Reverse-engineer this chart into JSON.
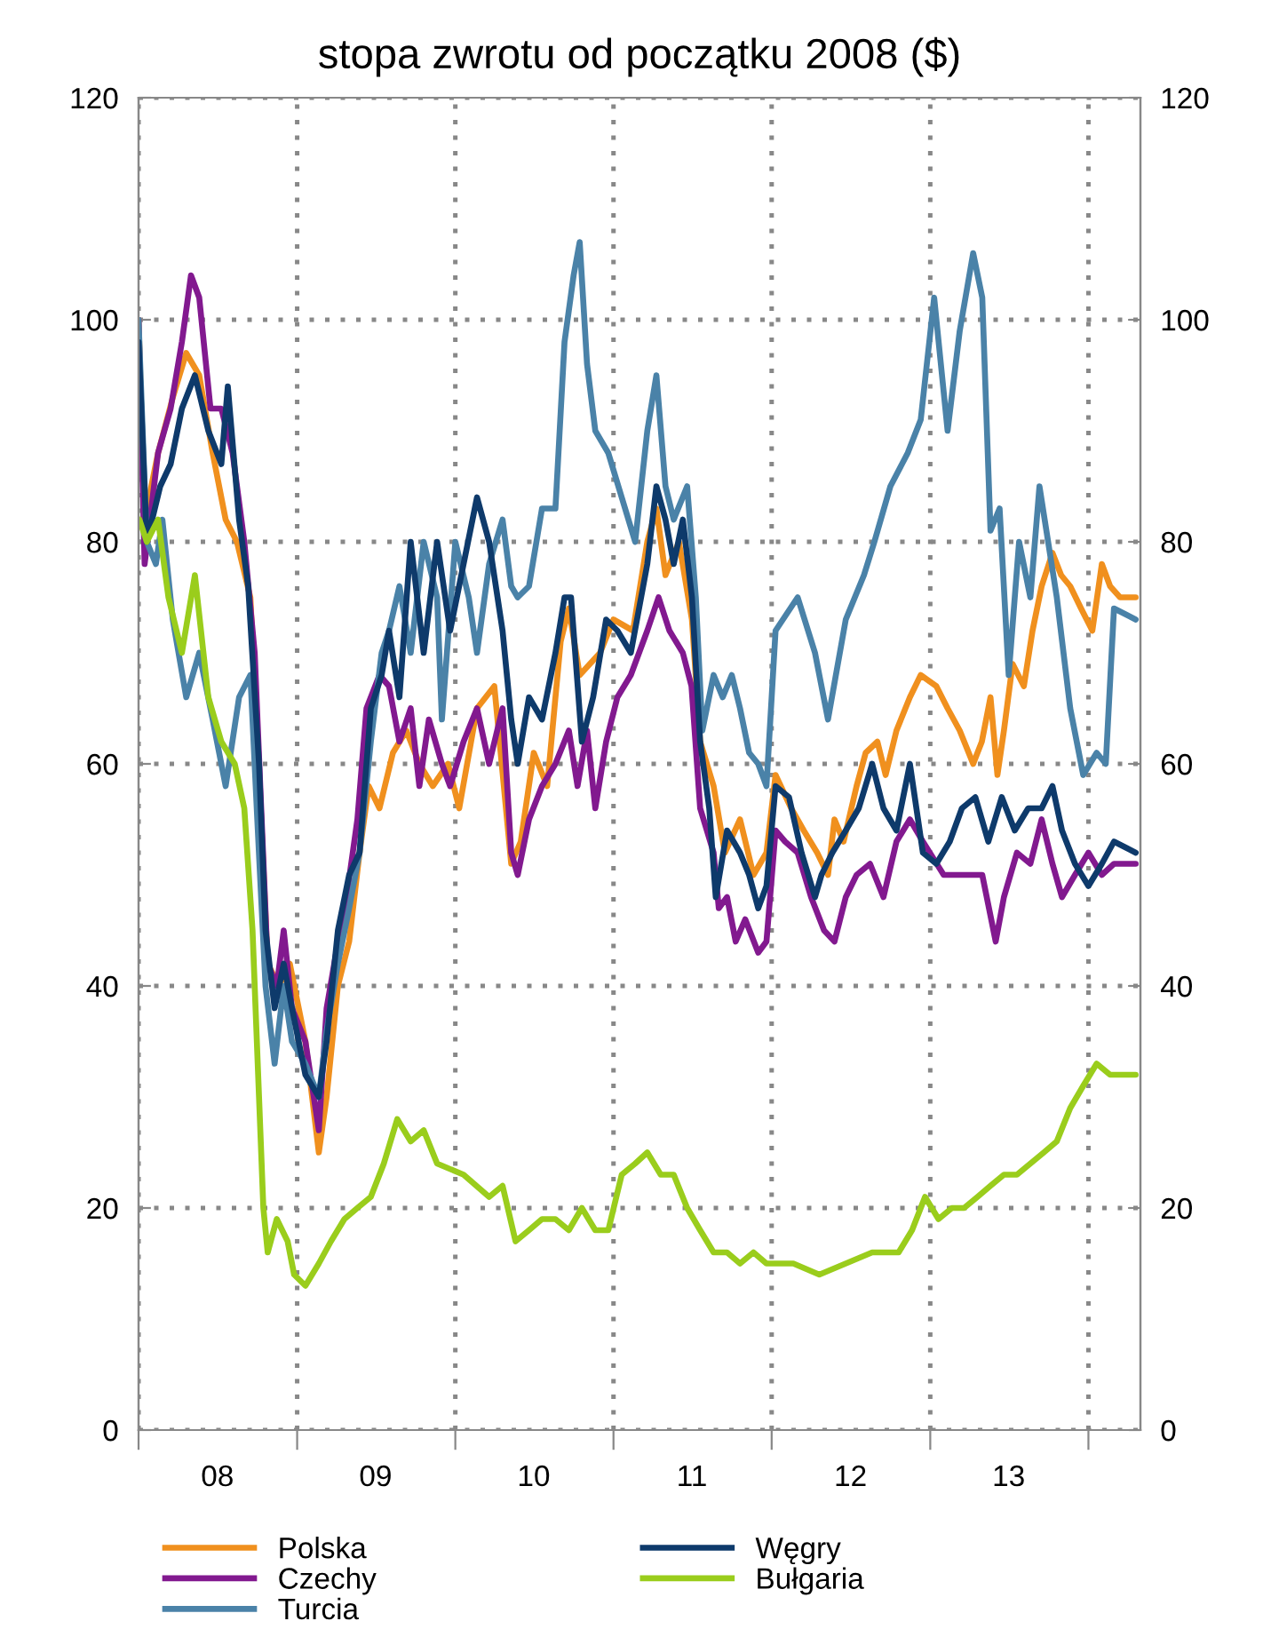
{
  "chart_data": {
    "type": "line",
    "title": "stopa zwrotu od początku 2008 ($)",
    "xlim": [
      "2008-01-01",
      "2014-05-01"
    ],
    "xticks": [
      {
        "value": "2008-01-01",
        "label": null
      },
      {
        "value": "2008-07-01",
        "label": "08"
      },
      {
        "value": "2009-01-01",
        "label": null
      },
      {
        "value": "2009-07-01",
        "label": "09"
      },
      {
        "value": "2010-01-01",
        "label": null
      },
      {
        "value": "2010-07-01",
        "label": "10"
      },
      {
        "value": "2011-01-01",
        "label": null
      },
      {
        "value": "2011-07-01",
        "label": "11"
      },
      {
        "value": "2012-01-01",
        "label": null
      },
      {
        "value": "2012-07-01",
        "label": "12"
      },
      {
        "value": "2013-01-01",
        "label": null
      },
      {
        "value": "2013-07-01",
        "label": "13"
      },
      {
        "value": "2014-01-01",
        "label": null
      }
    ],
    "ylim": [
      0,
      120
    ],
    "yticks": [
      0,
      20,
      40,
      60,
      80,
      100,
      120
    ],
    "y2lim": [
      0,
      120
    ],
    "y2ticks": [
      0,
      20,
      40,
      60,
      80,
      100,
      120
    ],
    "grid": true,
    "legend": "bottom",
    "line_style": "solid",
    "series": [
      {
        "name": "Polska",
        "color": "#f0901e",
        "x": [
          "2008-01-01",
          "2008-01-15",
          "2008-02-15",
          "2008-03-20",
          "2008-04-20",
          "2008-05-20",
          "2008-06-20",
          "2008-07-20",
          "2008-08-15",
          "2008-09-15",
          "2008-10-10",
          "2008-10-25",
          "2008-11-20",
          "2008-12-15",
          "2009-01-20",
          "2009-02-20",
          "2009-03-10",
          "2009-04-05",
          "2009-05-01",
          "2009-05-25",
          "2009-06-15",
          "2009-07-10",
          "2009-08-10",
          "2009-09-10",
          "2009-10-10",
          "2009-11-10",
          "2009-12-15",
          "2010-01-10",
          "2010-02-20",
          "2010-04-01",
          "2010-05-10",
          "2010-06-01",
          "2010-07-01",
          "2010-08-01",
          "2010-09-01",
          "2010-09-20",
          "2010-10-15",
          "2010-12-01",
          "2011-01-01",
          "2011-02-15",
          "2011-03-20",
          "2011-04-10",
          "2011-05-01",
          "2011-06-01",
          "2011-07-01",
          "2011-07-20",
          "2011-08-20",
          "2011-09-15",
          "2011-10-20",
          "2011-11-20",
          "2011-12-20",
          "2012-01-10",
          "2012-02-15",
          "2012-03-15",
          "2012-04-15",
          "2012-05-10",
          "2012-05-25",
          "2012-06-15",
          "2012-07-15",
          "2012-08-05",
          "2012-09-01",
          "2012-09-20",
          "2012-10-15",
          "2012-11-15",
          "2012-12-10",
          "2013-01-15",
          "2013-02-10",
          "2013-03-10",
          "2013-04-10",
          "2013-04-30",
          "2013-05-20",
          "2013-06-05",
          "2013-06-20",
          "2013-07-10",
          "2013-08-05",
          "2013-08-25",
          "2013-09-15",
          "2013-10-10",
          "2013-10-30",
          "2013-11-20",
          "2013-12-15",
          "2014-01-10",
          "2014-02-01",
          "2014-02-20",
          "2014-03-15",
          "2014-04-20"
        ],
        "values": [
          100,
          82,
          88,
          93,
          97,
          95,
          88,
          82,
          80,
          75,
          55,
          42,
          40,
          42,
          35,
          25,
          30,
          40,
          44,
          52,
          58,
          56,
          61,
          63,
          60,
          58,
          60,
          56,
          65,
          67,
          51,
          53,
          61,
          58,
          71,
          74,
          68,
          70,
          73,
          72,
          80,
          83,
          77,
          80,
          73,
          62,
          58,
          52,
          55,
          50,
          52,
          59,
          56,
          54,
          52,
          50,
          55,
          53,
          58,
          61,
          62,
          59,
          63,
          66,
          68,
          67,
          65,
          63,
          60,
          62,
          66,
          59,
          63,
          69,
          67,
          72,
          76,
          79,
          77,
          76,
          74,
          72,
          78,
          76,
          75,
          75
        ]
      },
      {
        "name": "Czechy",
        "color": "#82198f",
        "x": [
          "2008-01-01",
          "2008-01-15",
          "2008-02-15",
          "2008-03-15",
          "2008-04-10",
          "2008-05-01",
          "2008-05-20",
          "2008-06-15",
          "2008-07-10",
          "2008-08-05",
          "2008-09-01",
          "2008-09-25",
          "2008-10-10",
          "2008-10-25",
          "2008-11-15",
          "2008-12-01",
          "2008-12-20",
          "2009-01-20",
          "2009-02-20",
          "2009-03-10",
          "2009-04-01",
          "2009-04-25",
          "2009-05-20",
          "2009-06-10",
          "2009-07-10",
          "2009-08-01",
          "2009-08-25",
          "2009-09-20",
          "2009-10-10",
          "2009-11-01",
          "2009-12-01",
          "2009-12-20",
          "2010-01-20",
          "2010-02-20",
          "2010-03-20",
          "2010-04-20",
          "2010-05-10",
          "2010-05-25",
          "2010-06-20",
          "2010-07-20",
          "2010-08-20",
          "2010-09-20",
          "2010-10-10",
          "2010-11-01",
          "2010-11-20",
          "2010-12-15",
          "2011-01-10",
          "2011-02-10",
          "2011-03-20",
          "2011-04-15",
          "2011-05-10",
          "2011-06-10",
          "2011-06-30",
          "2011-07-20",
          "2011-08-20",
          "2011-09-01",
          "2011-09-20",
          "2011-10-10",
          "2011-11-01",
          "2011-12-01",
          "2011-12-20",
          "2012-01-10",
          "2012-02-01",
          "2012-03-01",
          "2012-04-01",
          "2012-05-01",
          "2012-05-25",
          "2012-06-20",
          "2012-07-15",
          "2012-08-15",
          "2012-09-15",
          "2012-10-15",
          "2012-11-15",
          "2012-12-15",
          "2013-02-01",
          "2013-03-01",
          "2013-04-01",
          "2013-05-01",
          "2013-06-01",
          "2013-06-20",
          "2013-07-20",
          "2013-08-20",
          "2013-09-15",
          "2013-10-10",
          "2013-11-01",
          "2013-12-01",
          "2014-01-01",
          "2014-02-01",
          "2014-03-01",
          "2014-04-20"
        ],
        "values": [
          100,
          78,
          88,
          92,
          98,
          104,
          102,
          92,
          92,
          88,
          80,
          70,
          56,
          42,
          40,
          45,
          38,
          35,
          27,
          38,
          43,
          48,
          55,
          65,
          68,
          67,
          62,
          65,
          58,
          64,
          60,
          58,
          62,
          65,
          60,
          65,
          52,
          50,
          55,
          58,
          60,
          63,
          58,
          63,
          56,
          62,
          66,
          68,
          72,
          75,
          72,
          70,
          67,
          56,
          52,
          47,
          48,
          44,
          46,
          43,
          44,
          54,
          53,
          52,
          48,
          45,
          44,
          48,
          50,
          51,
          48,
          53,
          55,
          53,
          50,
          50,
          50,
          50,
          44,
          48,
          52,
          51,
          55,
          51,
          48,
          50,
          52,
          50,
          51,
          51
        ]
      },
      {
        "name": "Turcia",
        "color": "#4a82a8",
        "x": [
          "2008-01-01",
          "2008-01-20",
          "2008-02-10",
          "2008-02-25",
          "2008-03-20",
          "2008-04-20",
          "2008-05-20",
          "2008-06-20",
          "2008-07-20",
          "2008-08-20",
          "2008-09-15",
          "2008-10-01",
          "2008-10-20",
          "2008-11-10",
          "2008-12-01",
          "2008-12-20",
          "2009-01-20",
          "2009-02-20",
          "2009-03-10",
          "2009-04-05",
          "2009-05-01",
          "2009-05-25",
          "2009-06-20",
          "2009-07-15",
          "2009-08-01",
          "2009-08-25",
          "2009-09-20",
          "2009-10-20",
          "2009-11-20",
          "2009-12-01",
          "2010-01-01",
          "2010-02-01",
          "2010-02-20",
          "2010-03-20",
          "2010-04-20",
          "2010-05-10",
          "2010-05-25",
          "2010-06-20",
          "2010-07-20",
          "2010-08-20",
          "2010-09-10",
          "2010-10-01",
          "2010-10-15",
          "2010-11-01",
          "2010-11-20",
          "2010-12-20",
          "2011-01-20",
          "2011-02-20",
          "2011-03-20",
          "2011-04-10",
          "2011-05-01",
          "2011-05-20",
          "2011-06-20",
          "2011-07-10",
          "2011-07-25",
          "2011-08-20",
          "2011-09-10",
          "2011-10-01",
          "2011-10-20",
          "2011-11-10",
          "2011-12-01",
          "2011-12-20",
          "2012-01-10",
          "2012-03-01",
          "2012-04-10",
          "2012-05-10",
          "2012-06-20",
          "2012-08-01",
          "2012-08-25",
          "2012-10-01",
          "2012-11-10",
          "2012-12-10",
          "2013-01-10",
          "2013-02-10",
          "2013-03-10",
          "2013-04-10",
          "2013-05-01",
          "2013-05-20",
          "2013-06-10",
          "2013-07-01",
          "2013-07-25",
          "2013-08-20",
          "2013-09-10",
          "2013-10-20",
          "2013-11-20",
          "2013-12-20",
          "2014-01-20",
          "2014-02-10",
          "2014-03-01",
          "2014-04-20"
        ],
        "values": [
          100,
          80,
          78,
          82,
          73,
          66,
          70,
          64,
          58,
          66,
          68,
          55,
          40,
          33,
          40,
          35,
          33,
          30,
          36,
          42,
          47,
          52,
          62,
          70,
          72,
          76,
          70,
          80,
          75,
          64,
          80,
          75,
          70,
          78,
          82,
          76,
          75,
          76,
          83,
          83,
          98,
          104,
          107,
          96,
          90,
          88,
          84,
          80,
          90,
          95,
          85,
          82,
          85,
          75,
          63,
          68,
          66,
          68,
          65,
          61,
          60,
          58,
          72,
          75,
          70,
          64,
          73,
          77,
          80,
          85,
          88,
          91,
          102,
          90,
          99,
          106,
          102,
          81,
          83,
          68,
          80,
          75,
          85,
          75,
          65,
          59,
          61,
          60,
          74,
          73
        ]
      },
      {
        "name": "Węgry",
        "color": "#0e3a6b",
        "x": [
          "2008-01-01",
          "2008-01-20",
          "2008-02-20",
          "2008-03-15",
          "2008-04-10",
          "2008-05-10",
          "2008-06-10",
          "2008-07-10",
          "2008-07-25",
          "2008-08-20",
          "2008-09-10",
          "2008-10-05",
          "2008-10-20",
          "2008-11-10",
          "2008-12-01",
          "2008-12-20",
          "2009-01-20",
          "2009-02-20",
          "2009-03-10",
          "2009-04-05",
          "2009-05-01",
          "2009-05-25",
          "2009-06-20",
          "2009-07-15",
          "2009-08-01",
          "2009-08-25",
          "2009-09-20",
          "2009-10-20",
          "2009-11-20",
          "2009-12-20",
          "2010-01-20",
          "2010-02-20",
          "2010-03-20",
          "2010-04-20",
          "2010-05-10",
          "2010-05-25",
          "2010-06-20",
          "2010-07-20",
          "2010-08-20",
          "2010-09-10",
          "2010-09-25",
          "2010-10-20",
          "2010-11-15",
          "2010-12-15",
          "2011-01-10",
          "2011-02-10",
          "2011-03-20",
          "2011-04-10",
          "2011-05-01",
          "2011-05-20",
          "2011-06-10",
          "2011-07-01",
          "2011-07-20",
          "2011-08-10",
          "2011-08-25",
          "2011-09-20",
          "2011-10-20",
          "2011-11-10",
          "2011-12-01",
          "2011-12-20",
          "2012-01-10",
          "2012-02-10",
          "2012-03-10",
          "2012-04-10",
          "2012-04-25",
          "2012-05-20",
          "2012-06-20",
          "2012-07-20",
          "2012-08-20",
          "2012-09-15",
          "2012-10-15",
          "2012-11-15",
          "2012-12-15",
          "2013-01-15",
          "2013-02-15",
          "2013-03-15",
          "2013-04-15",
          "2013-05-15",
          "2013-06-15",
          "2013-07-15",
          "2013-08-15",
          "2013-09-15",
          "2013-10-10",
          "2013-11-01",
          "2013-12-01",
          "2014-01-01",
          "2014-02-01",
          "2014-03-01",
          "2014-04-20"
        ],
        "values": [
          98,
          80,
          85,
          87,
          92,
          95,
          90,
          87,
          94,
          82,
          76,
          60,
          45,
          38,
          42,
          38,
          32,
          30,
          35,
          45,
          50,
          52,
          65,
          68,
          72,
          66,
          80,
          70,
          80,
          72,
          78,
          84,
          80,
          72,
          64,
          60,
          66,
          64,
          70,
          75,
          75,
          62,
          66,
          73,
          72,
          70,
          78,
          85,
          82,
          78,
          82,
          75,
          62,
          56,
          48,
          54,
          52,
          50,
          47,
          49,
          58,
          57,
          52,
          48,
          50,
          52,
          54,
          56,
          60,
          56,
          54,
          60,
          52,
          51,
          53,
          56,
          57,
          53,
          57,
          54,
          56,
          56,
          58,
          54,
          51,
          49,
          51,
          53,
          52
        ]
      },
      {
        "name": "Bułgaria",
        "color": "#9acd1c",
        "x": [
          "2008-01-03",
          "2008-01-20",
          "2008-02-15",
          "2008-03-10",
          "2008-04-10",
          "2008-05-10",
          "2008-06-10",
          "2008-07-10",
          "2008-08-10",
          "2008-09-01",
          "2008-09-20",
          "2008-10-05",
          "2008-10-15",
          "2008-10-25",
          "2008-11-15",
          "2008-12-10",
          "2008-12-25",
          "2009-01-20",
          "2009-02-20",
          "2009-03-20",
          "2009-04-20",
          "2009-05-20",
          "2009-06-20",
          "2009-07-20",
          "2009-08-20",
          "2009-09-20",
          "2009-10-20",
          "2009-11-20",
          "2010-01-20",
          "2010-03-20",
          "2010-04-20",
          "2010-05-20",
          "2010-06-20",
          "2010-07-20",
          "2010-08-20",
          "2010-09-20",
          "2010-10-20",
          "2010-11-20",
          "2010-12-20",
          "2011-01-20",
          "2011-02-20",
          "2011-03-20",
          "2011-04-20",
          "2011-05-20",
          "2011-06-20",
          "2011-07-20",
          "2011-08-20",
          "2011-09-20",
          "2011-10-20",
          "2011-11-20",
          "2011-12-20",
          "2012-02-20",
          "2012-04-20",
          "2012-06-20",
          "2012-08-20",
          "2012-10-20",
          "2012-11-20",
          "2012-12-20",
          "2013-01-20",
          "2013-02-20",
          "2013-03-20",
          "2013-04-20",
          "2013-05-20",
          "2013-06-20",
          "2013-07-20",
          "2013-08-20",
          "2013-09-20",
          "2013-10-20",
          "2013-11-20",
          "2013-12-20",
          "2014-01-20",
          "2014-02-20",
          "2014-04-20"
        ],
        "values": [
          82,
          80,
          82,
          75,
          70,
          77,
          66,
          62,
          60,
          56,
          45,
          30,
          20,
          16,
          19,
          17,
          14,
          13,
          15,
          17,
          19,
          20,
          21,
          24,
          28,
          26,
          27,
          24,
          23,
          21,
          22,
          17,
          18,
          19,
          19,
          18,
          20,
          18,
          18,
          23,
          24,
          25,
          23,
          23,
          20,
          18,
          16,
          16,
          15,
          16,
          15,
          15,
          14,
          15,
          16,
          16,
          18,
          21,
          19,
          20,
          20,
          21,
          22,
          23,
          23,
          24,
          25,
          26,
          29,
          31,
          33,
          32,
          32
        ]
      }
    ]
  }
}
